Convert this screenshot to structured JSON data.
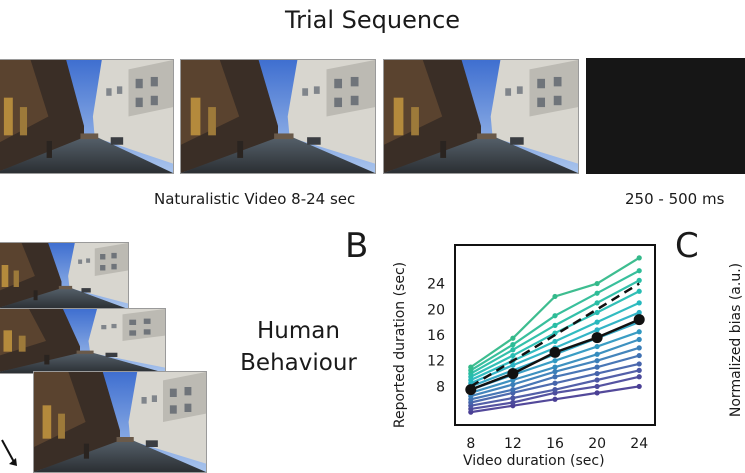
{
  "header": {
    "title": "Trial Sequence"
  },
  "sequence": {
    "video_caption": "Naturalistic Video 8-24 sec",
    "blank_caption": "250 - 500 ms"
  },
  "panels": {
    "b_letter": "B",
    "c_letter": "C",
    "human_behaviour": [
      "Human",
      "Behaviour"
    ]
  },
  "chart_data": {
    "type": "line",
    "xlabel": "Video duration (sec)",
    "ylabel": "Reported duration (sec)",
    "x": [
      8,
      12,
      16,
      20,
      24
    ],
    "xticks": [
      8,
      12,
      16,
      20,
      24
    ],
    "yticks": [
      8,
      12,
      16,
      20,
      24
    ],
    "xlim": [
      6.5,
      25.5
    ],
    "ylim": [
      2,
      30
    ],
    "mean_series": [
      7.5,
      10,
      13.3,
      15.6,
      18.4
    ],
    "identity_line": true,
    "participant_series": [
      {
        "values": [
          4,
          5,
          6,
          7,
          8
        ],
        "color": "#4a3f95"
      },
      {
        "values": [
          4.5,
          5.5,
          7,
          8,
          9.5
        ],
        "color": "#4c4a9c"
      },
      {
        "values": [
          5,
          6.2,
          7.5,
          9,
          10.5
        ],
        "color": "#4a56a3"
      },
      {
        "values": [
          5.5,
          7,
          8.5,
          10,
          11.5
        ],
        "color": "#4563ab"
      },
      {
        "values": [
          6,
          7.5,
          9.5,
          11,
          12.8
        ],
        "color": "#3f70b2"
      },
      {
        "values": [
          6.5,
          8.3,
          10.3,
          12,
          14
        ],
        "color": "#3a7eb8"
      },
      {
        "values": [
          7,
          9,
          11,
          13,
          15.3
        ],
        "color": "#348bbd"
      },
      {
        "values": [
          7.5,
          9.8,
          12,
          14.2,
          16.5
        ],
        "color": "#2f98c1"
      },
      {
        "values": [
          8,
          10.5,
          13,
          15.5,
          18
        ],
        "color": "#2ca4c3"
      },
      {
        "values": [
          8.5,
          11.3,
          14,
          16.8,
          19.5
        ],
        "color": "#29b0c3"
      },
      {
        "values": [
          9,
          12,
          15,
          18,
          21
        ],
        "color": "#27b8bd"
      },
      {
        "values": [
          9.5,
          12.8,
          16.3,
          19.5,
          22.8
        ],
        "color": "#27bcb2"
      },
      {
        "values": [
          10,
          13.7,
          17.5,
          21,
          24.5
        ],
        "color": "#29bda5"
      },
      {
        "values": [
          10.5,
          14.5,
          19,
          22.5,
          26
        ],
        "color": "#2ebc97"
      },
      {
        "values": [
          11,
          15.5,
          22,
          24,
          28
        ],
        "color": "#34b98a"
      }
    ]
  }
}
